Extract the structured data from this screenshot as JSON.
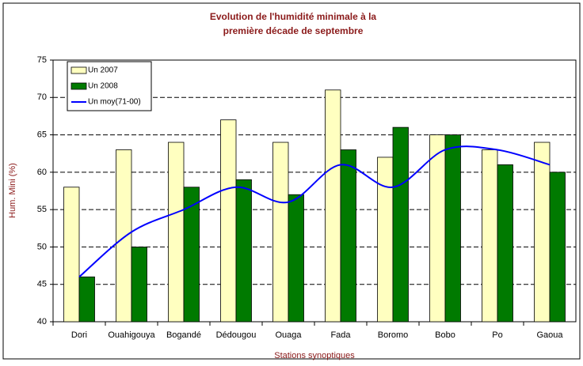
{
  "chart_data": {
    "type": "bar",
    "title": [
      "Evolution de l'humidité minimale à la",
      "première décade de septembre"
    ],
    "y_label": "Hum. Mini (%)",
    "x_label": "Stations synoptiques",
    "categories": [
      "Dori",
      "Ouahigouya",
      "Bogandé",
      "Dédougou",
      "Ouaga",
      "Fada",
      "Boromo",
      "Bobo",
      "Po",
      "Gaoua"
    ],
    "series": [
      {
        "name": "Un  2007",
        "color": "#ffffc0",
        "type": "bar",
        "values": [
          58,
          63,
          64,
          67,
          64,
          71,
          62,
          65,
          63,
          64
        ]
      },
      {
        "name": "Un  2008",
        "color": "#007a00",
        "type": "bar",
        "values": [
          46,
          50,
          58,
          59,
          57,
          63,
          66,
          65,
          61,
          60
        ]
      },
      {
        "name": "Un moy(71-00)",
        "color": "#0000ff",
        "type": "line",
        "values": [
          46,
          52,
          55,
          58,
          56,
          61,
          58,
          63,
          63,
          61
        ]
      }
    ],
    "ylim": [
      40,
      75
    ],
    "yticks": [
      40,
      45,
      50,
      55,
      60,
      65,
      70,
      75
    ],
    "grid": true,
    "legend": "top-left"
  }
}
